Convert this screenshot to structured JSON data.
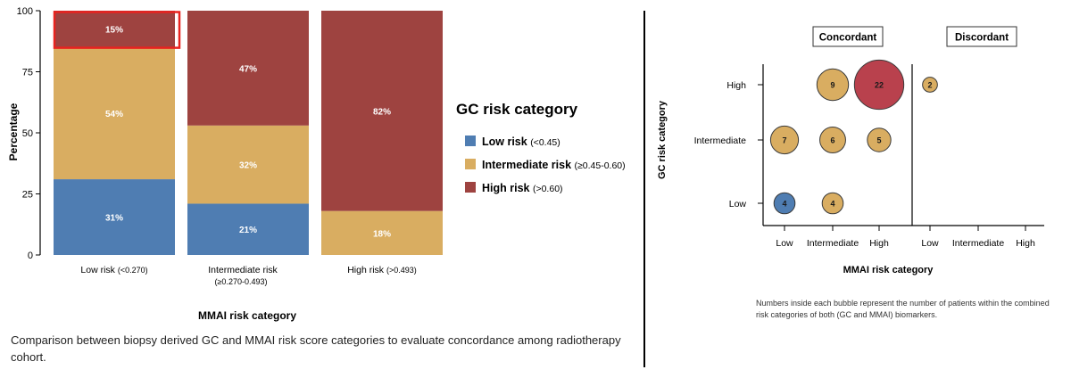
{
  "chart_data": [
    {
      "type": "bar",
      "stacked": true,
      "xlabel": "MMAI risk category",
      "ylabel": "Percentage",
      "ylim": [
        0,
        100
      ],
      "yticks": [
        "0",
        "25",
        "50",
        "75",
        "100"
      ],
      "categories": [
        {
          "main": "Low risk",
          "range": "(<0.270)"
        },
        {
          "main": "Intermediate risk",
          "range": "(≥0.270-0.493)"
        },
        {
          "main": "High risk",
          "range": "(>0.493)"
        }
      ],
      "series": [
        {
          "key": "low",
          "values": [
            31,
            21,
            0
          ],
          "labels": [
            "31%",
            "21%",
            ""
          ],
          "color": "#4f7db2"
        },
        {
          "key": "intermediate",
          "values": [
            54,
            32,
            18
          ],
          "labels": [
            "54%",
            "32%",
            "18%"
          ],
          "color": "#d9ad61"
        },
        {
          "key": "high",
          "values": [
            15,
            47,
            82
          ],
          "labels": [
            "15%",
            "47%",
            "82%"
          ],
          "color": "#9e4340"
        }
      ],
      "highlight": {
        "category_index": 0,
        "series_key": "high",
        "color": "#e8231f"
      },
      "legend": {
        "title": "GC risk category",
        "placement": "right",
        "items": [
          {
            "label": "Low risk",
            "range": "(<0.45)",
            "color": "#4f7db2"
          },
          {
            "label": "Intermediate risk",
            "range": "(≥0.45-0.60)",
            "color": "#d9ad61"
          },
          {
            "label": "High risk",
            "range": "(>0.60)",
            "color": "#9e4340"
          }
        ]
      }
    },
    {
      "type": "scatter",
      "variant": "bubble",
      "xlabel": "MMAI risk category",
      "ylabel": "GC risk category",
      "panels": [
        "Concordant",
        "Discordant"
      ],
      "x_categories": [
        "Low",
        "Intermediate",
        "High"
      ],
      "y_categories": [
        "Low",
        "Intermediate",
        "High"
      ],
      "points": [
        {
          "panel": 0,
          "x": 0,
          "y": 0,
          "value": 4,
          "label": "4",
          "color": "#4f7db2"
        },
        {
          "panel": 0,
          "x": 1,
          "y": 0,
          "value": 4,
          "label": "4",
          "color": "#d9ad61"
        },
        {
          "panel": 0,
          "x": 0,
          "y": 1,
          "value": 7,
          "label": "7",
          "color": "#d9ad61"
        },
        {
          "panel": 0,
          "x": 1,
          "y": 1,
          "value": 6,
          "label": "6",
          "color": "#d9ad61"
        },
        {
          "panel": 0,
          "x": 2,
          "y": 1,
          "value": 5,
          "label": "5",
          "color": "#d9ad61"
        },
        {
          "panel": 0,
          "x": 1,
          "y": 2,
          "value": 9,
          "label": "9",
          "color": "#d9ad61"
        },
        {
          "panel": 0,
          "x": 2,
          "y": 2,
          "value": 22,
          "label": "22",
          "color": "#b9414d"
        },
        {
          "panel": 1,
          "x": 0,
          "y": 2,
          "value": 2,
          "label": "2",
          "color": "#d9ad61"
        }
      ],
      "note": "Numbers inside each bubble represent the number of patients within the combined risk categories of both (GC and MMAI) biomarkers."
    }
  ],
  "caption": "Comparison between biopsy derived GC and MMAI risk score categories to evaluate concordance among radiotherapy cohort."
}
